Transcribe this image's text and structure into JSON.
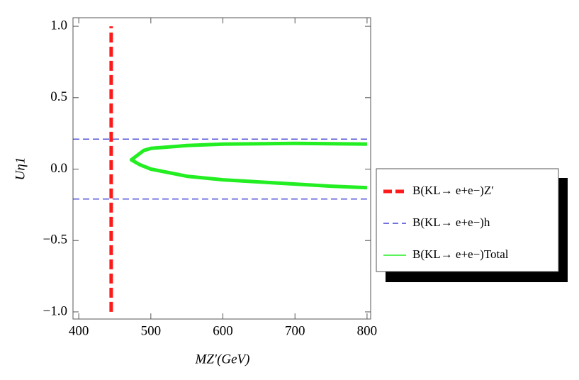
{
  "chart_data": {
    "type": "line",
    "xlabel": "MZ′(GeV)",
    "ylabel": "Uη1",
    "xlim": [
      392,
      805
    ],
    "ylim": [
      -1.05,
      1.06
    ],
    "xticks": [
      400,
      500,
      600,
      700,
      800
    ],
    "yticks": [
      {
        "value": -1.0,
        "label": "−1.0"
      },
      {
        "value": -0.5,
        "label": "−0.5"
      },
      {
        "value": 0.0,
        "label": "0.0"
      },
      {
        "value": 0.5,
        "label": "0.5"
      },
      {
        "value": 1.0,
        "label": "1.0"
      }
    ],
    "series": [
      {
        "name": "B(KL→ e+e−)Z′",
        "color": "#ff1a1a",
        "style": "vline",
        "x": [
          445,
          445
        ],
        "values": [
          -1.0,
          1.0
        ]
      },
      {
        "name": "B(KL→ e+e−)h",
        "color": "#1f1fcc",
        "style": "hline",
        "values": [
          0.21,
          -0.21
        ]
      },
      {
        "name": "B(KL→ e+e−)Total",
        "color": "#22ee22",
        "style": "solid",
        "x": [
          800,
          750,
          700,
          650,
          600,
          550,
          500,
          485,
          473,
          490,
          500,
          550,
          600,
          700,
          800
        ],
        "values": [
          -0.13,
          -0.12,
          -0.105,
          -0.09,
          -0.075,
          -0.05,
          0.0,
          0.03,
          0.065,
          0.13,
          0.145,
          0.165,
          0.175,
          0.18,
          0.175
        ]
      }
    ]
  }
}
